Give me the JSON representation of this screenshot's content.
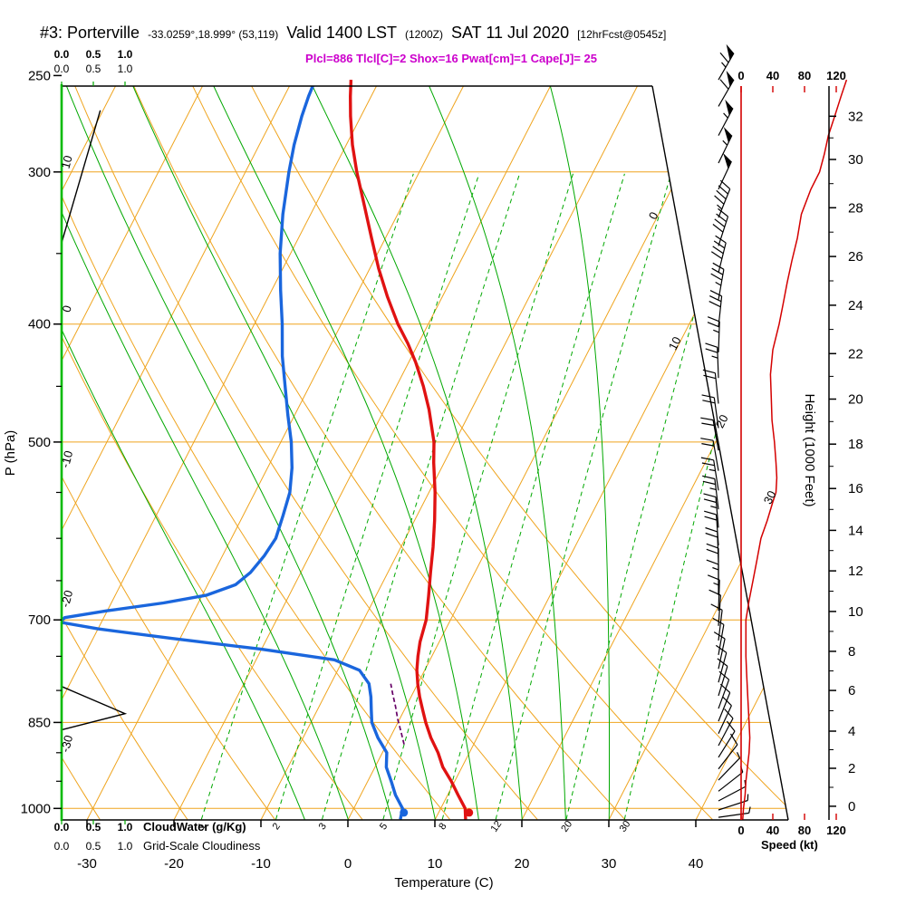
{
  "header": {
    "station": "#3: Porterville",
    "coords": "-33.0259°,18.999° (53,119)",
    "valid1": "Valid 1400 LST",
    "valid2": "(1200Z)",
    "valid3": "SAT 11 Jul 2020",
    "valid4": "[12hrFcst@0545z]",
    "stats": "Plcl=886 Tlcl[C]=2 Shox=16 Pwat[cm]=1 Cape[J]= 25"
  },
  "axes": {
    "pressure_label": "P (hPa)",
    "temp_label": "Temperature (C)",
    "height_label": "Height (1000 Feet)",
    "speed_label": "Speed (kt)",
    "cloudwater_label": "CloudWater (g/Kg)",
    "cloudiness_label": "Grid-Scale Cloudiness",
    "cloud_scale": [
      "0.0",
      "0.5",
      "1.0"
    ],
    "pressure_ticks": [
      250,
      300,
      400,
      500,
      700,
      850,
      1000
    ],
    "temp_ticks": [
      -30,
      -20,
      -10,
      0,
      10,
      20,
      30,
      40
    ],
    "speed_ticks": [
      0,
      40,
      80,
      120
    ]
  },
  "colors": {
    "grid_orange": "#efa41e",
    "green": "#00a800",
    "border_green": "#00bb00",
    "temp_red": "#e01212",
    "dewpoint_blue": "#1a66dd",
    "speed_red": "#d40000",
    "stats_magenta": "#cc00cc",
    "parcel_purple": "#660066"
  },
  "chart_data": {
    "type": "line",
    "title": "Skew-T / Log-P sounding, Porterville",
    "x_axis_label": "Temperature (C)",
    "y_axis_label": "P (hPa)",
    "y_scale": "log-pressure",
    "pressure_range_hpa": [
      1021,
      250
    ],
    "temperature_c": [
      [
        1021,
        13.5
      ],
      [
        1000,
        12.8
      ],
      [
        975,
        11.2
      ],
      [
        950,
        9.6
      ],
      [
        925,
        7.8
      ],
      [
        900,
        6.4
      ],
      [
        875,
        4.7
      ],
      [
        850,
        3.2
      ],
      [
        830,
        2.1
      ],
      [
        810,
        1.0
      ],
      [
        790,
        0.0
      ],
      [
        770,
        -0.9
      ],
      [
        750,
        -1.6
      ],
      [
        730,
        -2.2
      ],
      [
        700,
        -2.8
      ],
      [
        670,
        -3.9
      ],
      [
        640,
        -5.1
      ],
      [
        610,
        -6.3
      ],
      [
        580,
        -7.7
      ],
      [
        550,
        -9.3
      ],
      [
        520,
        -11.2
      ],
      [
        500,
        -12.4
      ],
      [
        470,
        -14.9
      ],
      [
        450,
        -16.9
      ],
      [
        430,
        -19.2
      ],
      [
        415,
        -21.2
      ],
      [
        400,
        -23.5
      ],
      [
        380,
        -26.3
      ],
      [
        360,
        -29.0
      ],
      [
        340,
        -31.6
      ],
      [
        320,
        -34.3
      ],
      [
        300,
        -37.2
      ],
      [
        285,
        -39.3
      ],
      [
        270,
        -41.2
      ],
      [
        260,
        -42.4
      ],
      [
        252,
        -43.3
      ]
    ],
    "dewpoint_c": [
      [
        1021,
        6.0
      ],
      [
        1000,
        5.6
      ],
      [
        975,
        4.0
      ],
      [
        950,
        2.7
      ],
      [
        925,
        1.3
      ],
      [
        900,
        0.5
      ],
      [
        875,
        -1.4
      ],
      [
        850,
        -3.0
      ],
      [
        830,
        -3.8
      ],
      [
        810,
        -4.6
      ],
      [
        790,
        -5.6
      ],
      [
        770,
        -7.5
      ],
      [
        755,
        -11.0
      ],
      [
        740,
        -20.0
      ],
      [
        725,
        -31.0
      ],
      [
        712,
        -40.0
      ],
      [
        703,
        -44.8
      ],
      [
        697,
        -44.5
      ],
      [
        688,
        -40.0
      ],
      [
        678,
        -34.0
      ],
      [
        668,
        -29.5
      ],
      [
        655,
        -26.8
      ],
      [
        640,
        -25.8
      ],
      [
        620,
        -25.2
      ],
      [
        600,
        -24.9
      ],
      [
        575,
        -25.4
      ],
      [
        550,
        -26.0
      ],
      [
        525,
        -27.2
      ],
      [
        500,
        -28.8
      ],
      [
        475,
        -30.8
      ],
      [
        450,
        -32.8
      ],
      [
        425,
        -34.9
      ],
      [
        400,
        -36.8
      ],
      [
        375,
        -39.0
      ],
      [
        350,
        -41.2
      ],
      [
        325,
        -43.2
      ],
      [
        300,
        -45.0
      ],
      [
        285,
        -46.0
      ],
      [
        270,
        -46.8
      ],
      [
        260,
        -47.2
      ],
      [
        252,
        -47.4
      ]
    ],
    "parcel_path_c": [
      [
        886,
        2.0
      ],
      [
        865,
        0.9
      ],
      [
        845,
        -0.2
      ],
      [
        825,
        -1.2
      ],
      [
        805,
        -2.3
      ],
      [
        790,
        -3.1
      ]
    ],
    "surface_temp_point": [
      1008,
      13.5
    ],
    "surface_dewpoint_point": [
      1008,
      6.0
    ],
    "wind_speed_kt": [
      [
        1021,
        2
      ],
      [
        1000,
        3
      ],
      [
        975,
        5
      ],
      [
        950,
        6
      ],
      [
        925,
        8
      ],
      [
        900,
        10
      ],
      [
        875,
        11
      ],
      [
        850,
        10
      ],
      [
        825,
        9
      ],
      [
        800,
        8
      ],
      [
        775,
        7
      ],
      [
        750,
        6
      ],
      [
        725,
        6
      ],
      [
        700,
        6
      ],
      [
        675,
        10
      ],
      [
        650,
        15
      ],
      [
        625,
        20
      ],
      [
        600,
        25
      ],
      [
        580,
        33
      ],
      [
        560,
        40
      ],
      [
        550,
        44
      ],
      [
        535,
        45
      ],
      [
        520,
        44
      ],
      [
        500,
        42
      ],
      [
        480,
        39
      ],
      [
        460,
        38
      ],
      [
        440,
        37
      ],
      [
        420,
        40
      ],
      [
        400,
        48
      ],
      [
        385,
        53
      ],
      [
        370,
        58
      ],
      [
        355,
        64
      ],
      [
        340,
        71
      ],
      [
        325,
        76
      ],
      [
        310,
        88
      ],
      [
        300,
        99
      ],
      [
        290,
        105
      ],
      [
        280,
        110
      ],
      [
        270,
        118
      ],
      [
        260,
        126
      ],
      [
        252,
        133
      ]
    ],
    "wind_barbs_p_spd_dir": [
      [
        252,
        65,
        30
      ],
      [
        265,
        60,
        30
      ],
      [
        280,
        55,
        28
      ],
      [
        295,
        55,
        26
      ],
      [
        310,
        50,
        25
      ],
      [
        327,
        45,
        22
      ],
      [
        345,
        42,
        18
      ],
      [
        363,
        38,
        14
      ],
      [
        382,
        33,
        10
      ],
      [
        402,
        30,
        6
      ],
      [
        422,
        27,
        2
      ],
      [
        443,
        25,
        358
      ],
      [
        465,
        22,
        354
      ],
      [
        487,
        20,
        352
      ],
      [
        508,
        20,
        350
      ],
      [
        528,
        22,
        350
      ],
      [
        548,
        25,
        351
      ],
      [
        568,
        25,
        353
      ],
      [
        588,
        25,
        355
      ],
      [
        608,
        22,
        356
      ],
      [
        628,
        20,
        358
      ],
      [
        648,
        18,
        0
      ],
      [
        668,
        15,
        0
      ],
      [
        688,
        13,
        2
      ],
      [
        708,
        11,
        4
      ],
      [
        728,
        10,
        7
      ],
      [
        748,
        10,
        10
      ],
      [
        768,
        10,
        12
      ],
      [
        788,
        10,
        15
      ],
      [
        808,
        10,
        17
      ],
      [
        828,
        11,
        20
      ],
      [
        848,
        12,
        22
      ],
      [
        868,
        11,
        25
      ],
      [
        888,
        10,
        28
      ],
      [
        908,
        9,
        32
      ],
      [
        928,
        8,
        38
      ],
      [
        948,
        7,
        44
      ],
      [
        968,
        6,
        52
      ],
      [
        986,
        5,
        62
      ],
      [
        1003,
        5,
        72
      ],
      [
        1017,
        4,
        82
      ]
    ],
    "cloud_layers": [
      {
        "points": [
          [
            343,
            0
          ],
          [
            267,
            0.61
          ]
        ]
      },
      {
        "points": [
          [
            862,
            0
          ],
          [
            836,
            1.0
          ],
          [
            794,
            0
          ]
        ]
      }
    ],
    "isotherms_c": {
      "min": -70,
      "max": 40,
      "step": 10
    },
    "dry_adiabats_c": [
      -60,
      -50,
      -40,
      -30,
      -20,
      -10,
      0,
      10,
      20,
      30,
      40,
      50
    ],
    "moist_adiabats_c": [
      -5,
      0,
      5,
      10,
      15,
      20,
      25,
      30
    ],
    "mixing_ratio_gkg": [
      1,
      2,
      3,
      5,
      8,
      12,
      20,
      30
    ],
    "pressure_lines": [
      300,
      400,
      500,
      700,
      850,
      1000
    ],
    "minor_pressure_ticks": [
      350,
      450,
      550,
      600,
      650,
      750,
      800,
      900,
      950
    ],
    "height_ticks_kft": [
      [
        0,
        996
      ],
      [
        2,
        927
      ],
      [
        4,
        864
      ],
      [
        6,
        800
      ],
      [
        8,
        743
      ],
      [
        10,
        689
      ],
      [
        12,
        638
      ],
      [
        14,
        591
      ],
      [
        16,
        546
      ],
      [
        18,
        502
      ],
      [
        20,
        461
      ],
      [
        22,
        423
      ],
      [
        24,
        386
      ],
      [
        26,
        352
      ],
      [
        28,
        321
      ],
      [
        30,
        293
      ],
      [
        32,
        270
      ]
    ],
    "isotherm_labels": [
      [
        0,
        240
      ],
      [
        10,
        381
      ],
      [
        20,
        467
      ],
      [
        30,
        551
      ]
    ],
    "dry_adiabat_labels": [
      [
        10,
        180
      ],
      [
        0,
        342
      ],
      [
        -10,
        508
      ],
      [
        -20,
        662
      ],
      [
        -30,
        822
      ]
    ]
  }
}
